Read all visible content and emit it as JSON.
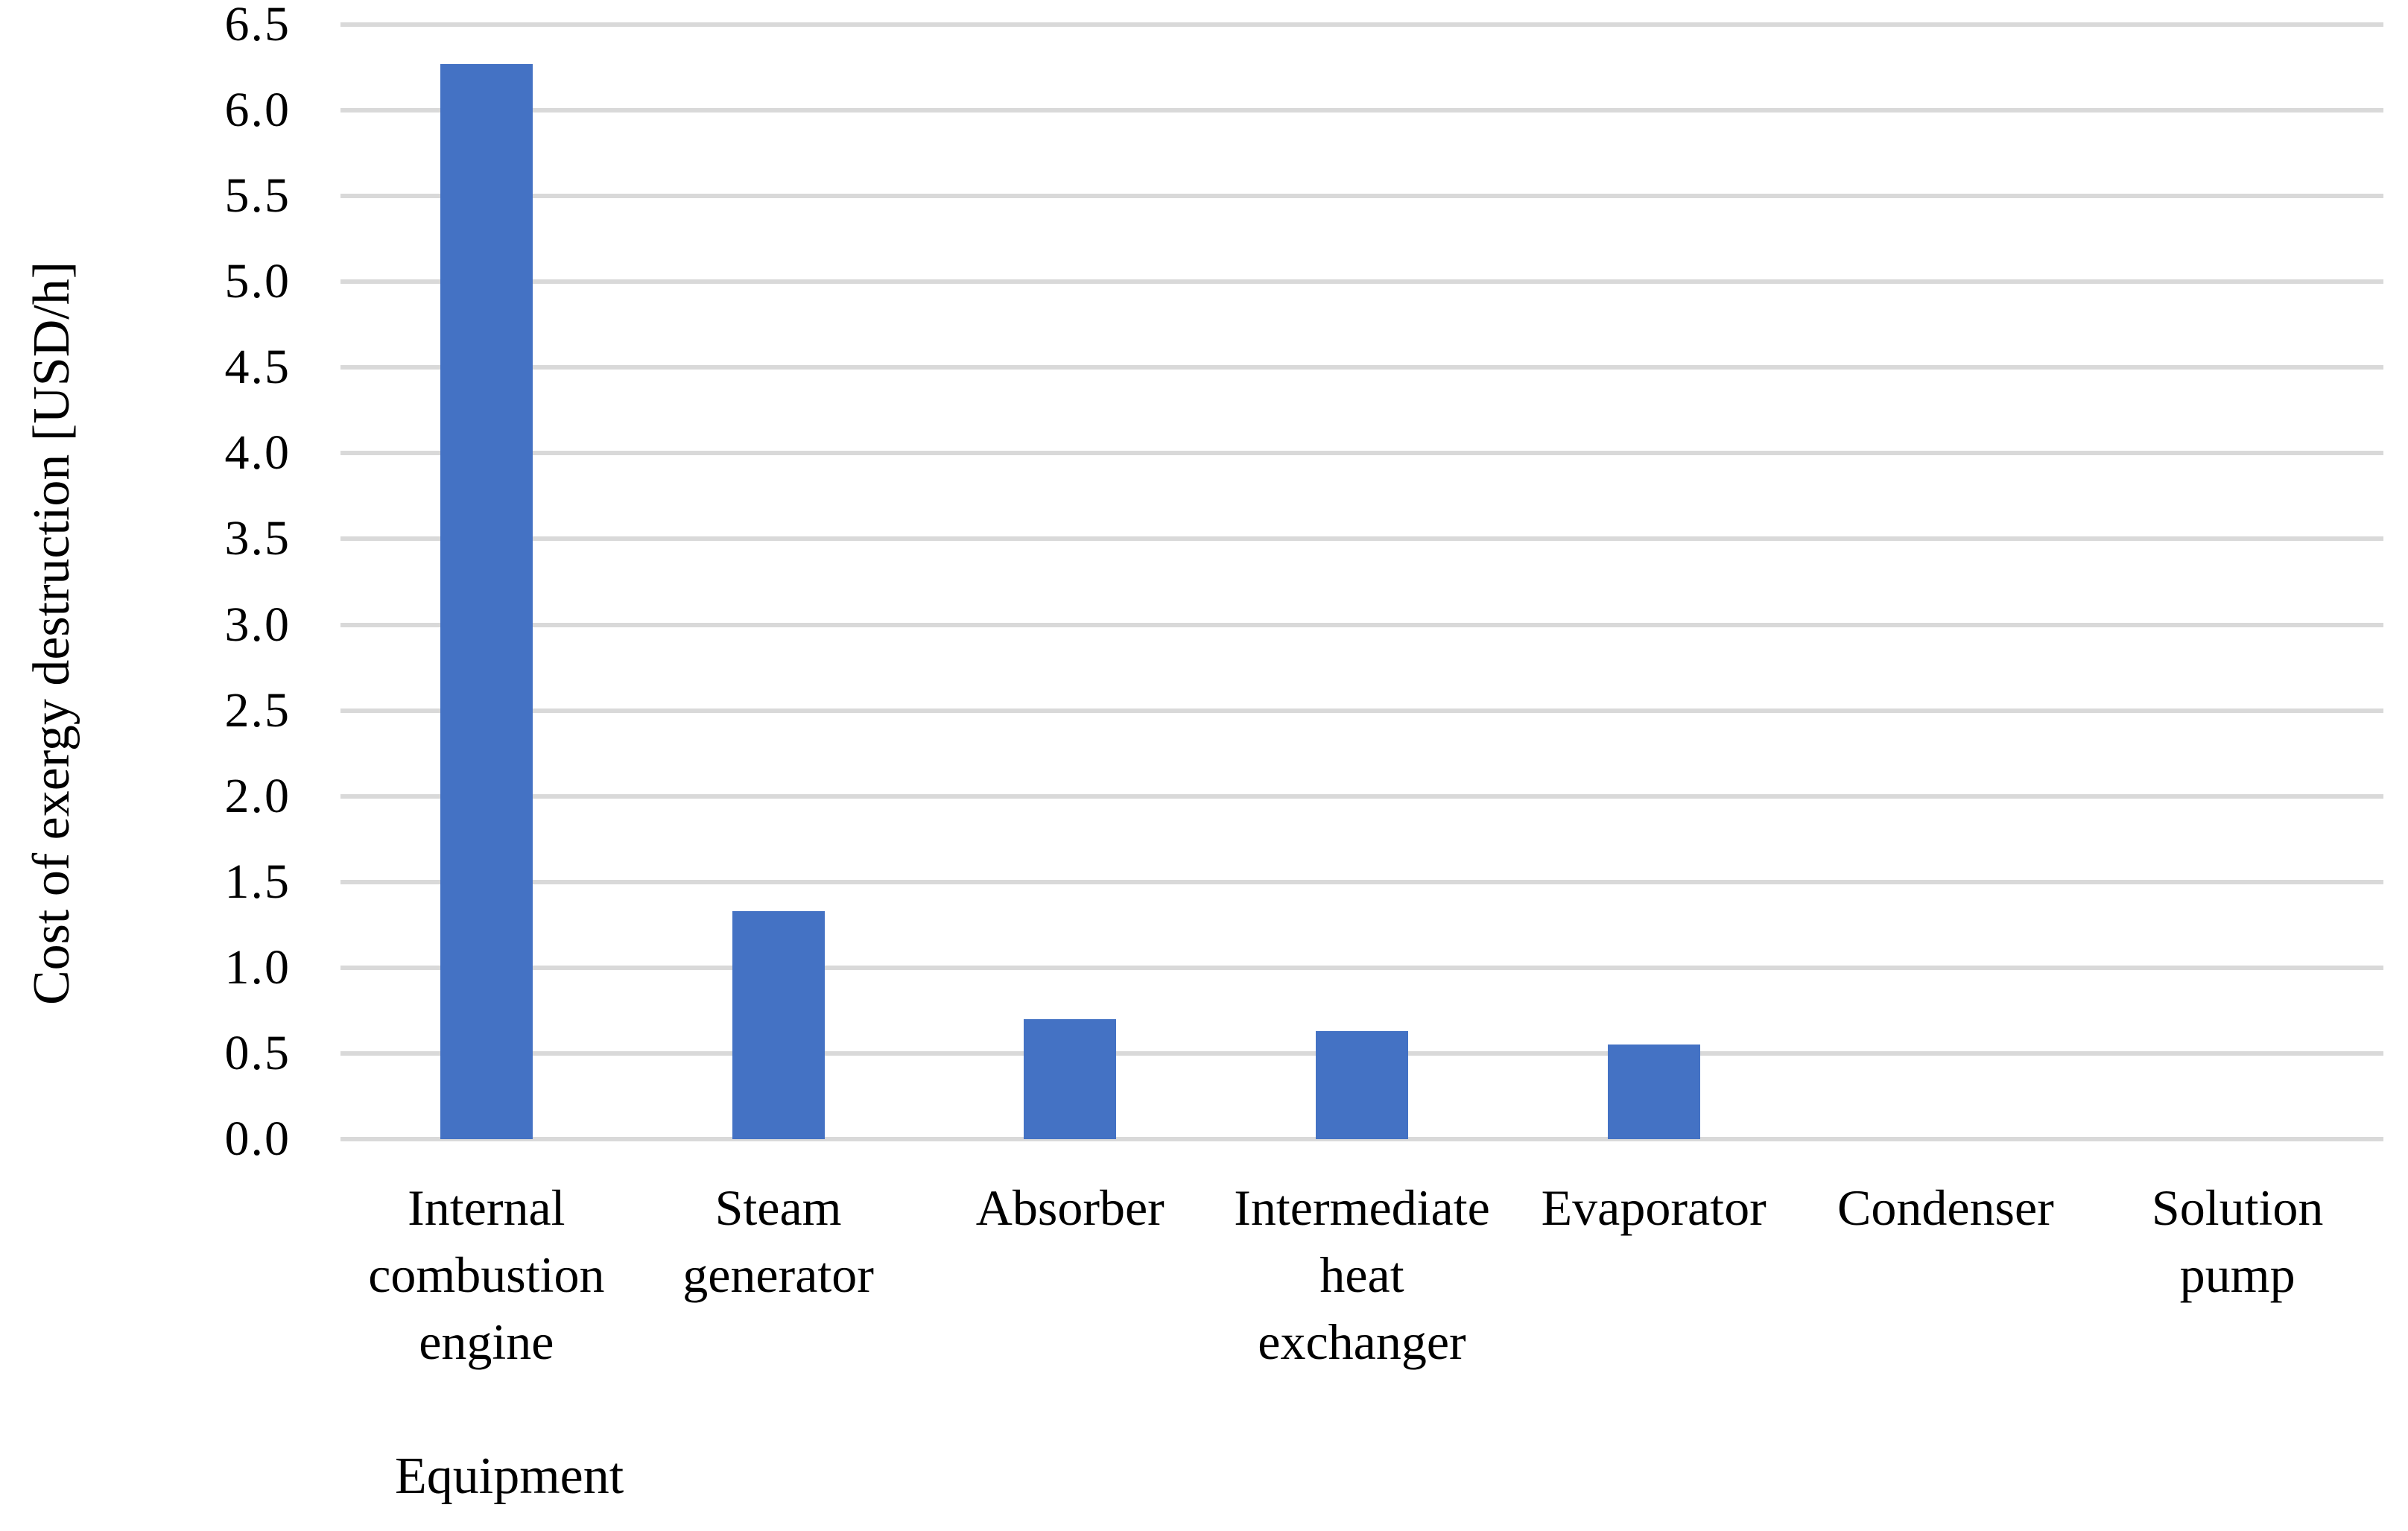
{
  "chart_data": {
    "type": "bar",
    "xlabel": "Equipment",
    "ylabel": "Cost of exergy destruction [USD/h]",
    "categories": [
      "Internal combustion engine",
      "Steam generator",
      "Absorber",
      "Intermediate heat exchanger",
      "Evaporator",
      "Condenser",
      "Solution pump"
    ],
    "categories_display": [
      "Internal\ncombustion\nengine",
      "Steam\ngenerator",
      "Absorber",
      "Intermediate\nheat\nexchanger",
      "Evaporator",
      "Condenser",
      "Solution\npump"
    ],
    "values": [
      6.27,
      1.33,
      0.7,
      0.63,
      0.55,
      0,
      0
    ],
    "ylim": [
      0.0,
      6.5
    ],
    "ytick_step": 0.5,
    "ytick_labels": [
      "6.5",
      "6.0",
      "5.5",
      "5.0",
      "4.5",
      "4.0",
      "3.5",
      "3.0",
      "2.5",
      "2.0",
      "1.5",
      "1.0",
      "0.5",
      "0.0"
    ],
    "grid": "horizontal",
    "legend": "none",
    "bar_color": "#4472C4",
    "gridline_color": "#D9D9D9",
    "text_color": "#000000",
    "background": "#FFFFFF"
  }
}
